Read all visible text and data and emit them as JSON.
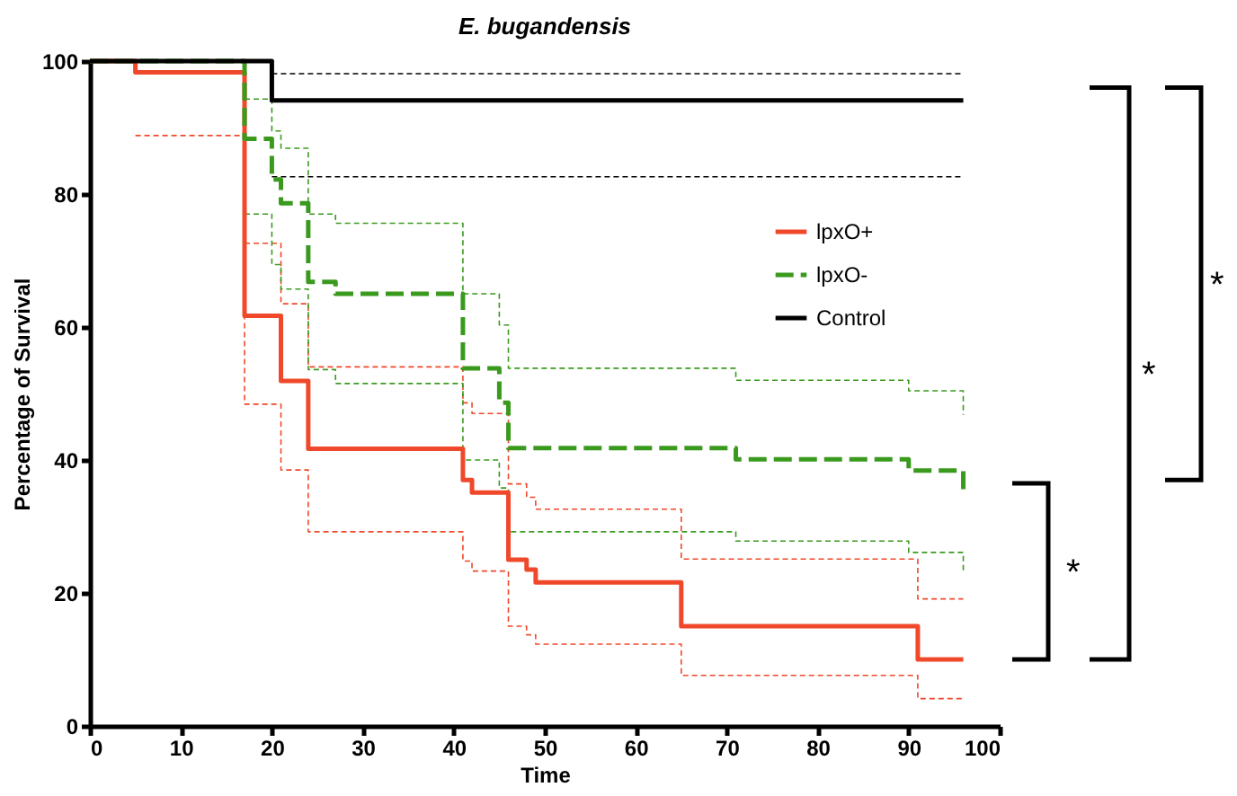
{
  "chart_data": {
    "type": "step",
    "title": "E. bugandensis",
    "xlabel": "Time",
    "ylabel": "Percentage of Survival",
    "xlim": [
      0,
      100
    ],
    "xticks": [
      0,
      10,
      20,
      30,
      40,
      50,
      60,
      70,
      80,
      90,
      100
    ],
    "ylim": [
      0,
      100
    ],
    "yticks": [
      0,
      20,
      40,
      60,
      80,
      100
    ],
    "grid": false,
    "legend": "top right",
    "marker": "none",
    "series": [
      {
        "color": "#f0482a",
        "line_style": "dashed",
        "x": [
          5,
          17,
          21,
          24,
          41,
          42,
          46,
          48,
          49,
          65,
          91,
          96
        ],
        "values": [
          88.8,
          48.4,
          38.5,
          29.2,
          24.8,
          23.3,
          15,
          13.7,
          12.3,
          7.6,
          4.1,
          4.1
        ]
      },
      {
        "color": "#f0482a",
        "line_style": "dashed",
        "x": [
          17,
          21,
          24,
          41,
          42,
          46,
          48,
          49,
          65,
          91,
          96
        ],
        "values": [
          72.6,
          63.5,
          54,
          48.6,
          47,
          36.4,
          34.4,
          32.6,
          25.1,
          19.1,
          19.1
        ]
      },
      {
        "color": "#3a9a1e",
        "line_style": "dashed",
        "x": [
          17,
          20,
          21,
          24,
          27,
          41,
          45,
          46,
          71,
          90,
          96
        ],
        "values": [
          94.3,
          89.5,
          86.9,
          77,
          75.6,
          65,
          60.3,
          53.8,
          52,
          50.4,
          46.8
        ]
      },
      {
        "color": "#3a9a1e",
        "line_style": "dashed",
        "x": [
          17,
          20,
          21,
          24,
          27,
          41,
          45,
          46,
          71,
          90,
          96
        ],
        "values": [
          77,
          69.4,
          65.7,
          53.6,
          51.5,
          40,
          35.8,
          29.2,
          27.8,
          26.1,
          23.4
        ]
      },
      {
        "color": "#000000",
        "line_style": "dashed",
        "x": [
          20,
          96
        ],
        "values": [
          98.1,
          98.1
        ]
      },
      {
        "color": "#000000",
        "line_style": "dashed",
        "x": [
          20,
          96
        ],
        "values": [
          82.6,
          82.6
        ]
      },
      {
        "name": "lpxO+",
        "color": "#f0482a",
        "line_style": "solid",
        "x": [
          0,
          5,
          17,
          21,
          24,
          41,
          42,
          46,
          48,
          49,
          65,
          91,
          96
        ],
        "values": [
          100,
          98.3,
          61.7,
          51.9,
          41.7,
          37,
          35.1,
          25,
          23.5,
          21.6,
          15,
          10,
          10
        ]
      },
      {
        "name": "lpxO-",
        "color": "#3a9a1e",
        "line_style": "dashed",
        "x": [
          0,
          17,
          20,
          21,
          24,
          27,
          41,
          45,
          46,
          71,
          90,
          96
        ],
        "values": [
          100,
          88.3,
          82.2,
          78.6,
          66.8,
          65,
          53.8,
          48.6,
          41.8,
          40.1,
          38.4,
          35.3
        ]
      },
      {
        "name": "Control",
        "color": "#000000",
        "line_style": "solid",
        "x": [
          0,
          20,
          96
        ],
        "values": [
          100,
          94.1,
          94.1
        ]
      }
    ],
    "annotations": [
      "*",
      "*",
      "*"
    ]
  }
}
